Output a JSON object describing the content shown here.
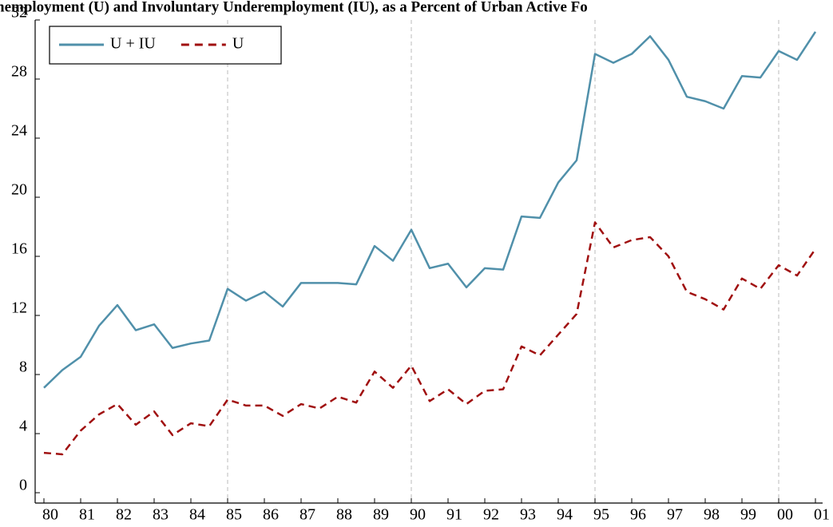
{
  "chart_data": {
    "type": "line",
    "title": "nemployment (U) and Involuntary Underemployment (IU), as a Percent of Urban Active Fo",
    "x": [
      1980,
      1980.5,
      1981,
      1981.5,
      1982,
      1982.5,
      1983,
      1983.5,
      1984,
      1984.5,
      1985,
      1985.5,
      1986,
      1986.5,
      1987,
      1987.5,
      1988,
      1988.5,
      1989,
      1989.5,
      1990,
      1990.5,
      1991,
      1991.5,
      1992,
      1992.5,
      1993,
      1993.5,
      1994,
      1994.5,
      1995,
      1995.5,
      1996,
      1996.5,
      1997,
      1997.5,
      1998,
      1998.5,
      1999,
      1999.5,
      2000,
      2000.5,
      2001
    ],
    "series": [
      {
        "name": "U + IU",
        "color": "#5090aa",
        "dash": false,
        "values": [
          7.1,
          8.3,
          9.2,
          11.3,
          12.7,
          11.0,
          11.4,
          9.8,
          10.1,
          10.3,
          13.8,
          13.0,
          13.6,
          12.6,
          14.2,
          14.2,
          14.2,
          14.1,
          16.7,
          15.7,
          17.8,
          15.2,
          15.5,
          13.9,
          15.2,
          15.1,
          18.7,
          18.6,
          21.0,
          22.5,
          29.7,
          29.1,
          29.7,
          30.9,
          29.3,
          26.8,
          26.5,
          26.0,
          28.2,
          28.1,
          29.9,
          29.3,
          31.2
        ]
      },
      {
        "name": "U",
        "color": "#a01010",
        "dash": true,
        "values": [
          2.7,
          2.6,
          4.2,
          5.3,
          6.0,
          4.6,
          5.5,
          3.9,
          4.7,
          4.5,
          6.3,
          5.9,
          5.9,
          5.2,
          6.0,
          5.7,
          6.5,
          6.1,
          8.2,
          7.1,
          8.6,
          6.2,
          7.0,
          6.0,
          6.9,
          7.0,
          9.9,
          9.3,
          10.7,
          12.1,
          18.3,
          16.6,
          17.1,
          17.3,
          16.0,
          13.6,
          13.1,
          12.4,
          14.5,
          13.8,
          15.4,
          14.7,
          16.5
        ]
      }
    ],
    "xlim": [
      1980,
      2001
    ],
    "xticks": [
      {
        "value": 1980,
        "label": "80"
      },
      {
        "value": 1981,
        "label": "81"
      },
      {
        "value": 1982,
        "label": "82"
      },
      {
        "value": 1983,
        "label": "83"
      },
      {
        "value": 1984,
        "label": "84"
      },
      {
        "value": 1985,
        "label": "85"
      },
      {
        "value": 1986,
        "label": "86"
      },
      {
        "value": 1987,
        "label": "87"
      },
      {
        "value": 1988,
        "label": "88"
      },
      {
        "value": 1989,
        "label": "89"
      },
      {
        "value": 1990,
        "label": "90"
      },
      {
        "value": 1991,
        "label": "91"
      },
      {
        "value": 1992,
        "label": "92"
      },
      {
        "value": 1993,
        "label": "93"
      },
      {
        "value": 1994,
        "label": "94"
      },
      {
        "value": 1995,
        "label": "95"
      },
      {
        "value": 1996,
        "label": "96"
      },
      {
        "value": 1997,
        "label": "97"
      },
      {
        "value": 1998,
        "label": "98"
      },
      {
        "value": 1999,
        "label": "99"
      },
      {
        "value": 2000,
        "label": "00"
      },
      {
        "value": 2001,
        "label": "01"
      }
    ],
    "ylim": [
      -0.7,
      32
    ],
    "yticks": [
      0,
      4,
      8,
      12,
      16,
      20,
      24,
      28,
      32
    ],
    "x_grid_lines": [
      1985,
      1990,
      1995,
      2000
    ],
    "legend": "top-left"
  }
}
